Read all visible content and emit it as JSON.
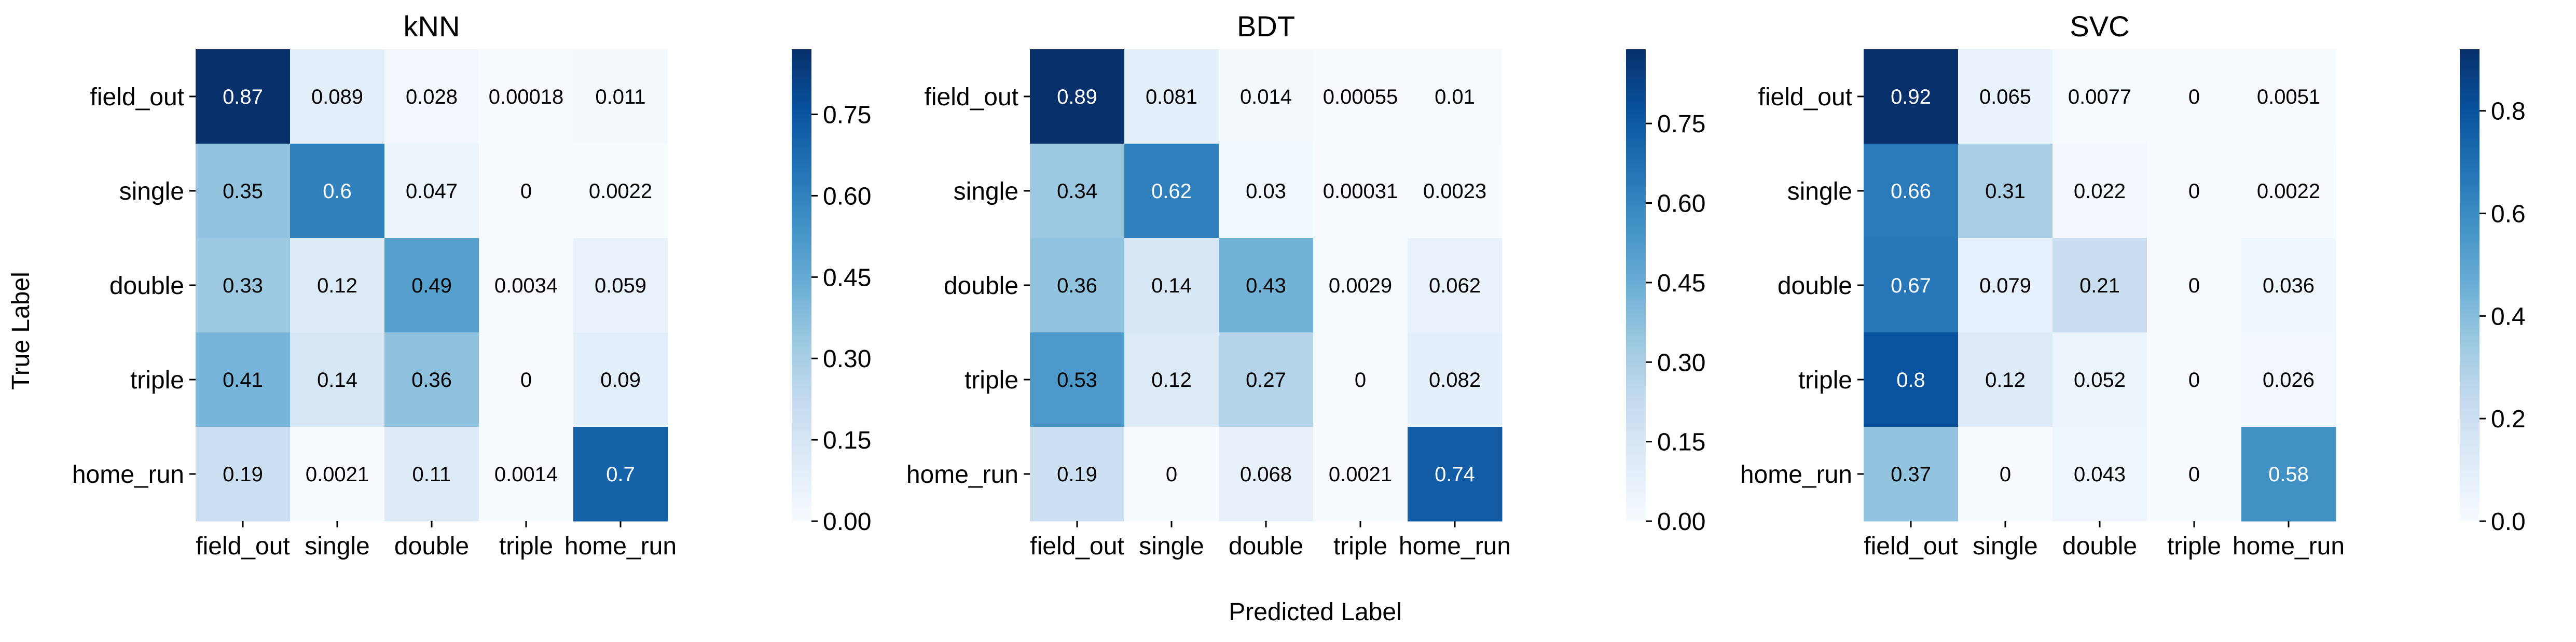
{
  "figure": {
    "ylabel": "True Label",
    "xlabel": "Predicted Label"
  },
  "colormap": {
    "name": "Blues",
    "stops": [
      "#f7fbff",
      "#deebf7",
      "#c6dbef",
      "#9ecae1",
      "#6baed6",
      "#4292c6",
      "#2171b5",
      "#08519c",
      "#08306b"
    ],
    "text_light": "#ffffff",
    "text_dark": "#000000"
  },
  "chart_data": [
    {
      "type": "heatmap",
      "title": "kNN",
      "rows": [
        "field_out",
        "single",
        "double",
        "triple",
        "home_run"
      ],
      "cols": [
        "field_out",
        "single",
        "double",
        "triple",
        "home_run"
      ],
      "cell_labels": [
        [
          "0.87",
          "0.089",
          "0.028",
          "0.00018",
          "0.011"
        ],
        [
          "0.35",
          "0.6",
          "0.047",
          "0",
          "0.0022"
        ],
        [
          "0.33",
          "0.12",
          "0.49",
          "0.0034",
          "0.059"
        ],
        [
          "0.41",
          "0.14",
          "0.36",
          "0",
          "0.09"
        ],
        [
          "0.19",
          "0.0021",
          "0.11",
          "0.0014",
          "0.7"
        ]
      ],
      "values": [
        [
          0.87,
          0.089,
          0.028,
          0.00018,
          0.011
        ],
        [
          0.35,
          0.6,
          0.047,
          0,
          0.0022
        ],
        [
          0.33,
          0.12,
          0.49,
          0.0034,
          0.059
        ],
        [
          0.41,
          0.14,
          0.36,
          0,
          0.09
        ],
        [
          0.19,
          0.0021,
          0.11,
          0.0014,
          0.7
        ]
      ],
      "colorbar": {
        "min": 0,
        "max": 0.87,
        "ticks": [
          0,
          0.15,
          0.3,
          0.45,
          0.6,
          0.75
        ],
        "tick_labels": [
          "0.00",
          "0.15",
          "0.30",
          "0.45",
          "0.60",
          "0.75"
        ]
      }
    },
    {
      "type": "heatmap",
      "title": "BDT",
      "rows": [
        "field_out",
        "single",
        "double",
        "triple",
        "home_run"
      ],
      "cols": [
        "field_out",
        "single",
        "double",
        "triple",
        "home_run"
      ],
      "cell_labels": [
        [
          "0.89",
          "0.081",
          "0.014",
          "0.00055",
          "0.01"
        ],
        [
          "0.34",
          "0.62",
          "0.03",
          "0.00031",
          "0.0023"
        ],
        [
          "0.36",
          "0.14",
          "0.43",
          "0.0029",
          "0.062"
        ],
        [
          "0.53",
          "0.12",
          "0.27",
          "0",
          "0.082"
        ],
        [
          "0.19",
          "0",
          "0.068",
          "0.0021",
          "0.74"
        ]
      ],
      "values": [
        [
          0.89,
          0.081,
          0.014,
          0.00055,
          0.01
        ],
        [
          0.34,
          0.62,
          0.03,
          0.00031,
          0.0023
        ],
        [
          0.36,
          0.14,
          0.43,
          0.0029,
          0.062
        ],
        [
          0.53,
          0.12,
          0.27,
          0,
          0.082
        ],
        [
          0.19,
          0,
          0.068,
          0.0021,
          0.74
        ]
      ],
      "colorbar": {
        "min": 0,
        "max": 0.89,
        "ticks": [
          0,
          0.15,
          0.3,
          0.45,
          0.6,
          0.75
        ],
        "tick_labels": [
          "0.00",
          "0.15",
          "0.30",
          "0.45",
          "0.60",
          "0.75"
        ]
      }
    },
    {
      "type": "heatmap",
      "title": "SVC",
      "rows": [
        "field_out",
        "single",
        "double",
        "triple",
        "home_run"
      ],
      "cols": [
        "field_out",
        "single",
        "double",
        "triple",
        "home_run"
      ],
      "cell_labels": [
        [
          "0.92",
          "0.065",
          "0.0077",
          "0",
          "0.0051"
        ],
        [
          "0.66",
          "0.31",
          "0.022",
          "0",
          "0.0022"
        ],
        [
          "0.67",
          "0.079",
          "0.21",
          "0",
          "0.036"
        ],
        [
          "0.8",
          "0.12",
          "0.052",
          "0",
          "0.026"
        ],
        [
          "0.37",
          "0",
          "0.043",
          "0",
          "0.58"
        ]
      ],
      "values": [
        [
          0.92,
          0.065,
          0.0077,
          0,
          0.0051
        ],
        [
          0.66,
          0.31,
          0.022,
          0,
          0.0022
        ],
        [
          0.67,
          0.079,
          0.21,
          0,
          0.036
        ],
        [
          0.8,
          0.12,
          0.052,
          0,
          0.026
        ],
        [
          0.37,
          0,
          0.043,
          0,
          0.58
        ]
      ],
      "colorbar": {
        "min": 0,
        "max": 0.92,
        "ticks": [
          0,
          0.2,
          0.4,
          0.6,
          0.8
        ],
        "tick_labels": [
          "0.0",
          "0.2",
          "0.4",
          "0.6",
          "0.8"
        ]
      }
    }
  ]
}
